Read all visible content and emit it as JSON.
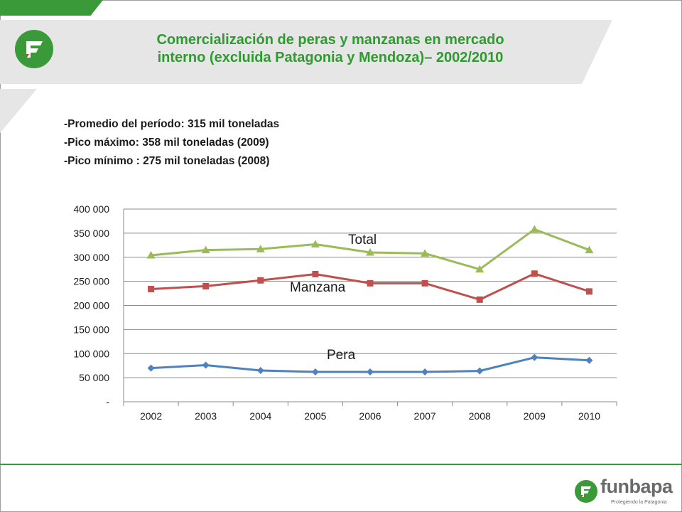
{
  "slide": {
    "title_line1": "Comercialización de peras y manzanas en mercado",
    "title_line2": "interno (excluida Patagonia y Mendoza)– 2002/2010",
    "bullets": [
      "-Promedio del período: 315 mil toneladas",
      "-Pico máximo:  358 mil toneladas (2009)",
      "-Pico mínimo :  275 mil toneladas (2008)"
    ],
    "colors": {
      "accent_green": "#3a9a3a",
      "title_green": "#2f9a2f",
      "band_gray": "#e6e6e6"
    }
  },
  "brand": {
    "name": "funbapa",
    "tagline": "Protegiendo la Patagonia"
  },
  "chart_data": {
    "type": "line",
    "categories": [
      "2002",
      "2003",
      "2004",
      "2005",
      "2006",
      "2007",
      "2008",
      "2009",
      "2010"
    ],
    "ylim": [
      0,
      400000
    ],
    "yticks": [
      0,
      50000,
      100000,
      150000,
      200000,
      250000,
      300000,
      350000,
      400000
    ],
    "ytick_labels": [
      "-",
      "50 000",
      "100 000",
      "150 000",
      "200 000",
      "250 000",
      "300 000",
      "350 000",
      "400 000"
    ],
    "grid": true,
    "series": [
      {
        "name": "Total",
        "color": "#9bbb59",
        "marker": "triangle",
        "values": [
          304000,
          315000,
          317000,
          327000,
          310000,
          308000,
          275000,
          358000,
          315000
        ]
      },
      {
        "name": "Manzana",
        "color": "#c0504d",
        "marker": "square",
        "values": [
          234000,
          240000,
          252000,
          265000,
          246000,
          246000,
          212000,
          266000,
          229000
        ]
      },
      {
        "name": "Pera",
        "color": "#4f81bd",
        "marker": "diamond",
        "values": [
          70000,
          76000,
          65000,
          62000,
          62000,
          62000,
          64000,
          92000,
          86000
        ]
      }
    ]
  }
}
